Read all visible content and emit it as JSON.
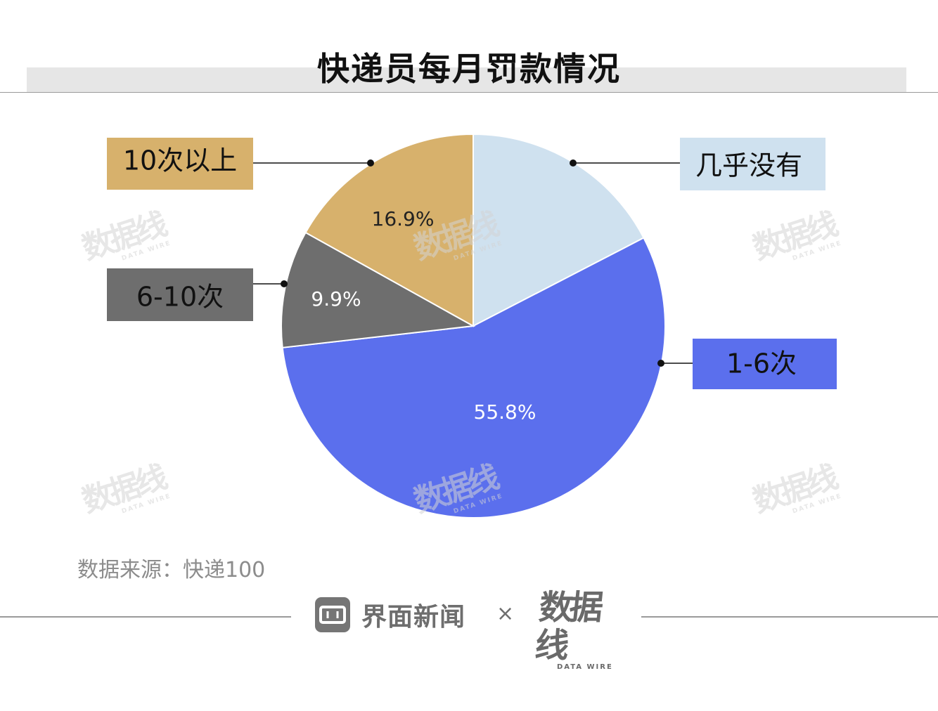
{
  "title": "快递员每月罚款情况",
  "chart_data": {
    "type": "pie",
    "start": "12 o'clock",
    "direction": "clockwise",
    "slices": [
      {
        "label": "几乎没有",
        "value": 17.4,
        "color": "#cfe1ef",
        "label_text_color": "#222222",
        "legend_side": "right"
      },
      {
        "label": "1-6次",
        "value": 55.8,
        "display": "55.8%",
        "color": "#5b6fed",
        "label_text_color": "#ffffff",
        "legend_side": "right"
      },
      {
        "label": "6-10次",
        "value": 9.9,
        "display": "9.9%",
        "color": "#6e6e6e",
        "label_text_color": "#ffffff",
        "legend_side": "left"
      },
      {
        "label": "10次以上",
        "value": 16.9,
        "display": "16.9%",
        "color": "#d7b16c",
        "label_text_color": "#222222",
        "legend_side": "left"
      }
    ]
  },
  "watermark": {
    "main": "数据线",
    "sub": "DATA WIRE"
  },
  "source": "数据来源：快递100",
  "footer": {
    "brand": "界面新闻",
    "times": "×",
    "logo_main": "数据线",
    "logo_sub": "DATA WIRE"
  }
}
